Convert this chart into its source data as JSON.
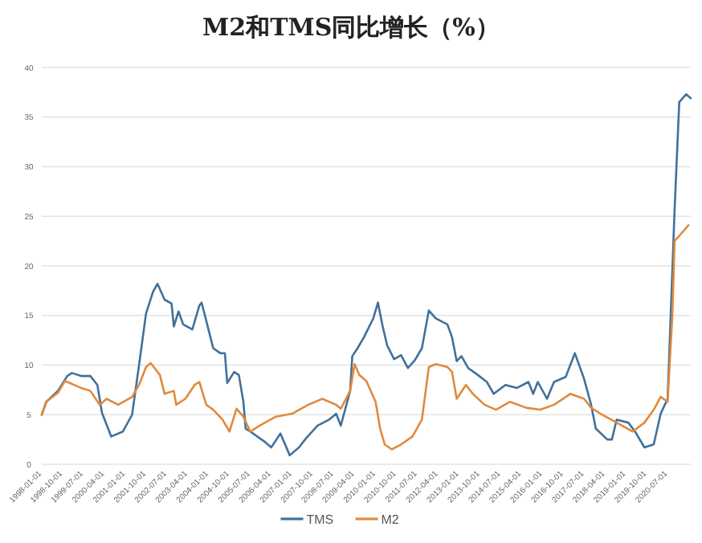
{
  "chart_data": {
    "type": "line",
    "title": "M2和TMS同比增长（%）",
    "xlim": [
      "1998-01-01",
      "2021-05-01"
    ],
    "xticks": [
      "1998-01-01",
      "1998-10-01",
      "1999-07-01",
      "2000-04-01",
      "2001-01-01",
      "2001-10-01",
      "2002-07-01",
      "2003-04-01",
      "2004-01-01",
      "2004-10-01",
      "2005-07-01",
      "2006-04-01",
      "2007-01-01",
      "2007-10-01",
      "2008-07-01",
      "2009-04-01",
      "2010-01-01",
      "2010-10-01",
      "2011-07-01",
      "2012-04-01",
      "2013-01-01",
      "2013-10-01",
      "2014-07-01",
      "2015-04-01",
      "2016-01-01",
      "2016-10-01",
      "2017-07-01",
      "2018-04-01",
      "2019-01-01",
      "2019-10-01",
      "2020-07-01"
    ],
    "ylim": [
      0,
      40
    ],
    "yticks": [
      0,
      5,
      10,
      15,
      20,
      25,
      30,
      35,
      40
    ],
    "grid": "y",
    "legend": "bottom",
    "series": [
      {
        "name": "TMS",
        "color": "#41719c",
        "x": [
          "1998-01",
          "1998-03",
          "1998-08",
          "1998-12",
          "1999-02",
          "1999-06",
          "1999-10",
          "2000-01",
          "2000-03",
          "2000-07",
          "2000-12",
          "2001-04",
          "2001-07",
          "2001-10",
          "2002-01",
          "2002-03",
          "2002-06",
          "2002-09",
          "2002-10",
          "2002-12",
          "2003-02",
          "2003-06",
          "2003-09",
          "2003-10",
          "2004-03",
          "2004-06",
          "2004-08",
          "2004-09",
          "2004-12",
          "2005-02",
          "2005-04",
          "2005-05",
          "2005-07",
          "2006-01",
          "2006-04",
          "2006-08",
          "2006-12",
          "2007-04",
          "2007-07",
          "2007-12",
          "2008-05",
          "2008-08",
          "2008-10",
          "2009-02",
          "2009-03",
          "2009-05",
          "2009-08",
          "2009-12",
          "2010-02",
          "2010-04",
          "2010-06",
          "2010-09",
          "2010-12",
          "2011-03",
          "2011-06",
          "2011-09",
          "2011-12",
          "2012-03",
          "2012-08",
          "2012-10",
          "2012-12",
          "2013-02",
          "2013-05",
          "2013-08",
          "2014-01",
          "2014-04",
          "2014-09",
          "2015-02",
          "2015-07",
          "2015-09",
          "2015-11",
          "2016-03",
          "2016-06",
          "2016-11",
          "2017-03",
          "2017-07",
          "2017-10",
          "2017-12",
          "2018-05",
          "2018-07",
          "2018-09",
          "2019-02",
          "2019-05",
          "2019-09",
          "2020-01",
          "2020-04",
          "2020-05",
          "2020-07",
          "2020-10",
          "2020-12",
          "2021-03",
          "2021-05"
        ],
        "values": [
          5.0,
          6.3,
          7.4,
          8.9,
          9.2,
          8.9,
          8.9,
          8.0,
          5.2,
          2.8,
          3.3,
          5.0,
          10.0,
          15.2,
          17.4,
          18.2,
          16.6,
          16.2,
          13.9,
          15.4,
          14.1,
          13.6,
          16.0,
          16.3,
          11.7,
          11.2,
          11.2,
          8.2,
          9.3,
          9.0,
          6.3,
          3.6,
          3.3,
          2.3,
          1.7,
          3.1,
          0.9,
          1.7,
          2.6,
          3.9,
          4.5,
          5.1,
          3.9,
          7.4,
          10.9,
          11.6,
          12.8,
          14.7,
          16.3,
          14.0,
          12.0,
          10.6,
          11.0,
          9.7,
          10.5,
          11.7,
          15.5,
          14.7,
          14.1,
          12.8,
          10.4,
          10.9,
          9.7,
          9.2,
          8.3,
          7.1,
          8.0,
          7.7,
          8.3,
          7.1,
          8.3,
          6.6,
          8.3,
          8.8,
          11.2,
          8.6,
          6.0,
          3.6,
          2.5,
          2.5,
          4.5,
          4.2,
          3.3,
          1.7,
          2.0,
          5.1,
          5.6,
          6.6,
          25.7,
          36.5,
          37.3,
          36.9
        ]
      },
      {
        "name": "M2",
        "color": "#e08a3c",
        "x": [
          "1998-01",
          "1998-03",
          "1998-08",
          "1998-11",
          "1999-06",
          "1999-10",
          "2000-02",
          "2000-05",
          "2000-10",
          "2001-04",
          "2001-07",
          "2001-10",
          "2001-12",
          "2002-02",
          "2002-04",
          "2002-06",
          "2002-10",
          "2002-11",
          "2003-03",
          "2003-07",
          "2003-09",
          "2003-12",
          "2004-03",
          "2004-07",
          "2004-10",
          "2005-01",
          "2005-04",
          "2005-07",
          "2005-11",
          "2006-06",
          "2007-01",
          "2007-08",
          "2008-02",
          "2008-08",
          "2008-10",
          "2009-02",
          "2009-04",
          "2009-06",
          "2009-09",
          "2010-01",
          "2010-03",
          "2010-05",
          "2010-08",
          "2010-12",
          "2011-05",
          "2011-09",
          "2011-12",
          "2012-03",
          "2012-08",
          "2012-10",
          "2012-12",
          "2013-04",
          "2013-07",
          "2013-12",
          "2014-05",
          "2014-11",
          "2015-06",
          "2015-12",
          "2016-06",
          "2017-01",
          "2017-07",
          "2017-10",
          "2018-02",
          "2018-09",
          "2019-04",
          "2019-09",
          "2020-01",
          "2020-04",
          "2020-07",
          "2020-09",
          "2020-10",
          "2021-01",
          "2021-04"
        ],
        "values": [
          5.0,
          6.3,
          7.2,
          8.4,
          7.7,
          7.4,
          6.0,
          6.6,
          6.0,
          6.8,
          8.0,
          9.8,
          10.2,
          9.6,
          9.0,
          7.1,
          7.4,
          6.0,
          6.6,
          8.0,
          8.3,
          6.0,
          5.5,
          4.5,
          3.3,
          5.6,
          4.8,
          3.3,
          3.9,
          4.8,
          5.1,
          6.0,
          6.6,
          6.0,
          5.6,
          7.4,
          10.1,
          9.0,
          8.4,
          6.3,
          3.6,
          2.0,
          1.5,
          2.0,
          2.8,
          4.5,
          9.8,
          10.1,
          9.8,
          9.3,
          6.6,
          8.0,
          7.1,
          6.0,
          5.5,
          6.3,
          5.7,
          5.5,
          6.0,
          7.1,
          6.6,
          5.7,
          5.1,
          4.2,
          3.3,
          4.2,
          5.5,
          6.8,
          6.3,
          14.9,
          22.5,
          23.3,
          24.1
        ]
      }
    ]
  }
}
